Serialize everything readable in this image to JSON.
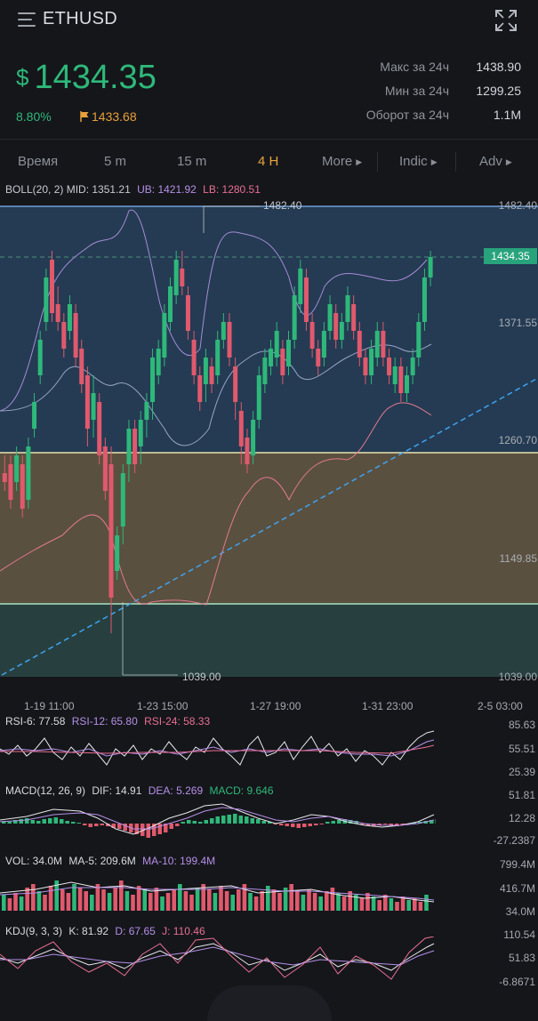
{
  "header": {
    "symbol": "ETHUSD",
    "currency_symbol": "$",
    "price": "1434.35",
    "change_pct": "8.80%",
    "flag_price": "1433.68",
    "stats": [
      {
        "label": "Макс за 24ч",
        "value": "1438.90"
      },
      {
        "label": "Мин за 24ч",
        "value": "1299.25"
      },
      {
        "label": "Оборот за 24ч",
        "value": "1.1M"
      }
    ]
  },
  "tabs": [
    {
      "label": "Время",
      "active": false,
      "caret": false
    },
    {
      "label": "5 m",
      "active": false,
      "caret": false
    },
    {
      "label": "15 m",
      "active": false,
      "caret": false
    },
    {
      "label": "4 H",
      "active": true,
      "caret": false
    },
    {
      "label": "More",
      "active": false,
      "caret": true
    },
    {
      "label": "Indic",
      "active": false,
      "caret": true
    },
    {
      "label": "Adv",
      "active": false,
      "caret": true
    }
  ],
  "boll": {
    "name": "BOLL(20, 2)",
    "mid": "MID: 1351.21",
    "ub": "UB: 1421.92",
    "lb": "LB: 1280.51"
  },
  "price_axis": [
    "1482.40",
    "1371.55",
    "1260.70",
    "1149.85",
    "1039.00"
  ],
  "current_price_tag": "1434.35",
  "high_marker": "1482.40",
  "low_marker": "1039.00",
  "time_axis": [
    "1-19 11:00",
    "1-23 15:00",
    "1-27 19:00",
    "1-31 23:00",
    "2-5 03:00"
  ],
  "rsi": {
    "rsi6": "RSI-6: 77.58",
    "rsi12": "RSI-12: 65.80",
    "rsi24": "RSI-24: 58.33",
    "axis": [
      "85.63",
      "55.51",
      "25.39"
    ]
  },
  "macd": {
    "name": "MACD(12, 26, 9)",
    "dif": "DIF: 14.91",
    "dea": "DEA: 5.269",
    "macd": "MACD: 9.646",
    "axis": [
      "51.81",
      "12.28",
      "-27.2387"
    ]
  },
  "vol": {
    "vol": "VOL: 34.0M",
    "ma5": "MA-5: 209.6M",
    "ma10": "MA-10: 199.4M",
    "axis": [
      "799.4M",
      "416.7M",
      "34.0M"
    ]
  },
  "kdj": {
    "name": "KDJ(9, 3, 3)",
    "k": "K: 81.92",
    "d": "D: 67.65",
    "j": "J: 110.46",
    "axis": [
      "110.54",
      "51.83",
      "-6.8671"
    ]
  },
  "colors": {
    "up": "#2eb87a",
    "down": "#e0596d",
    "accent": "#e9a53a",
    "boll_mid": "#c9b6e8",
    "boll_ub": "#b58fe8",
    "boll_lb": "#e96f93"
  },
  "icons": {
    "menu": "menu-icon",
    "fullscreen": "fullscreen-icon",
    "flag": "flag-icon"
  }
}
